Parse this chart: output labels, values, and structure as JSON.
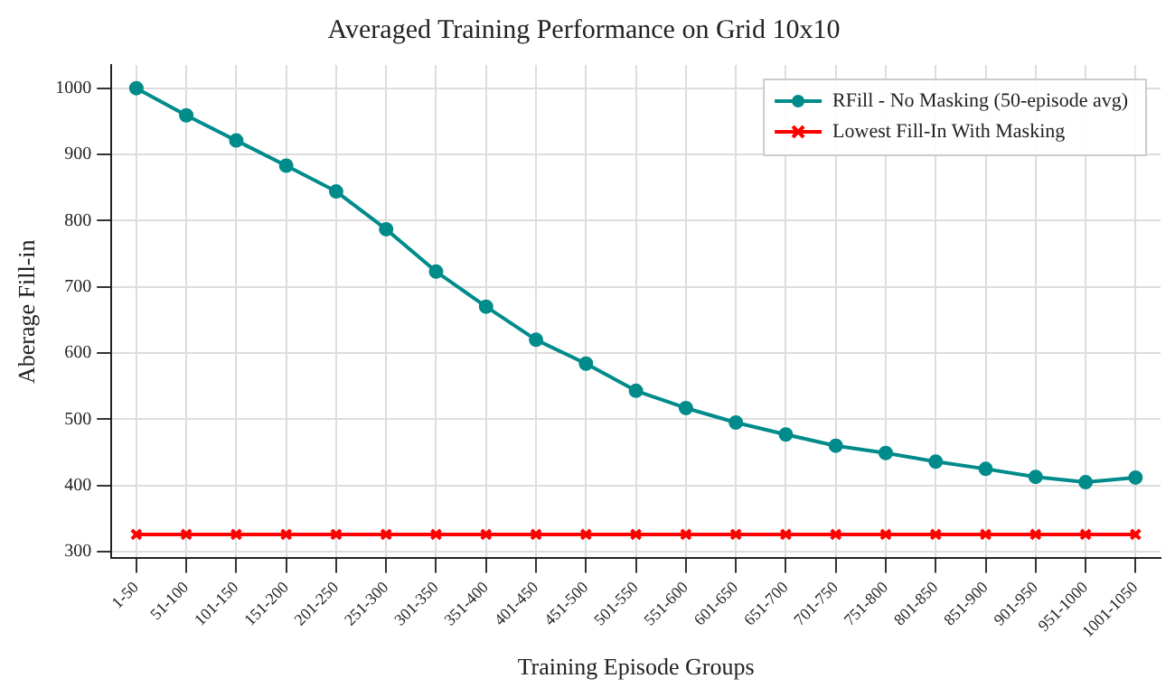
{
  "chart_data": {
    "type": "line",
    "title": "Averaged Training Performance on Grid 10x10",
    "xlabel": "Training Episode Groups",
    "ylabel": "Aberage Fill-in",
    "categories": [
      "1-50",
      "51-100",
      "101-150",
      "151-200",
      "201-250",
      "251-300",
      "301-350",
      "351-400",
      "401-450",
      "451-500",
      "501-550",
      "551-600",
      "601-650",
      "651-700",
      "701-750",
      "751-800",
      "801-850",
      "851-900",
      "901-950",
      "951-1000",
      "1001-1050"
    ],
    "series": [
      {
        "name": "RFill - No Masking (50-episode avg)",
        "color": "#008b8b",
        "marker": "circle",
        "values": [
          1000,
          959,
          921,
          883,
          844,
          787,
          723,
          670,
          620,
          584,
          543,
          517,
          495,
          477,
          460,
          449,
          436,
          425,
          413,
          405,
          412
        ]
      },
      {
        "name": "Lowest Fill-In With Masking",
        "color": "#ff0000",
        "marker": "cross",
        "values": [
          326,
          326,
          326,
          326,
          326,
          326,
          326,
          326,
          326,
          326,
          326,
          326,
          326,
          326,
          326,
          326,
          326,
          326,
          326,
          326,
          326
        ]
      }
    ],
    "ylim": [
      290,
      1035
    ],
    "yticks": [
      300,
      400,
      500,
      600,
      700,
      800,
      900,
      1000
    ],
    "grid": true,
    "legend": "top right",
    "line_style": "solid"
  }
}
